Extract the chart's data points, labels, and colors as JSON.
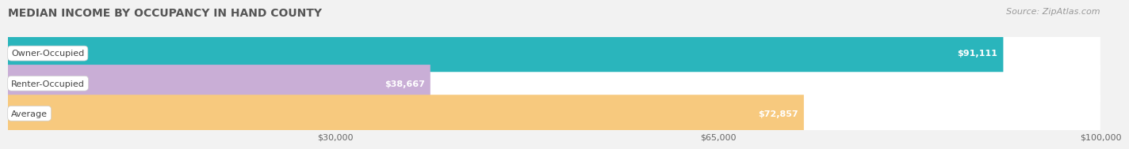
{
  "title": "MEDIAN INCOME BY OCCUPANCY IN HAND COUNTY",
  "source": "Source: ZipAtlas.com",
  "categories": [
    "Owner-Occupied",
    "Renter-Occupied",
    "Average"
  ],
  "values": [
    91111,
    38667,
    72857
  ],
  "labels": [
    "$91,111",
    "$38,667",
    "$72,857"
  ],
  "bar_colors": [
    "#2ab5bc",
    "#c9aed6",
    "#f7c97e"
  ],
  "xlim": [
    0,
    100000
  ],
  "xticks": [
    30000,
    65000,
    100000
  ],
  "xticklabels": [
    "$30,000",
    "$65,000",
    "$100,000"
  ],
  "background_color": "#f2f2f2",
  "title_fontsize": 10,
  "tick_fontsize": 8,
  "label_fontsize": 8,
  "source_fontsize": 8
}
